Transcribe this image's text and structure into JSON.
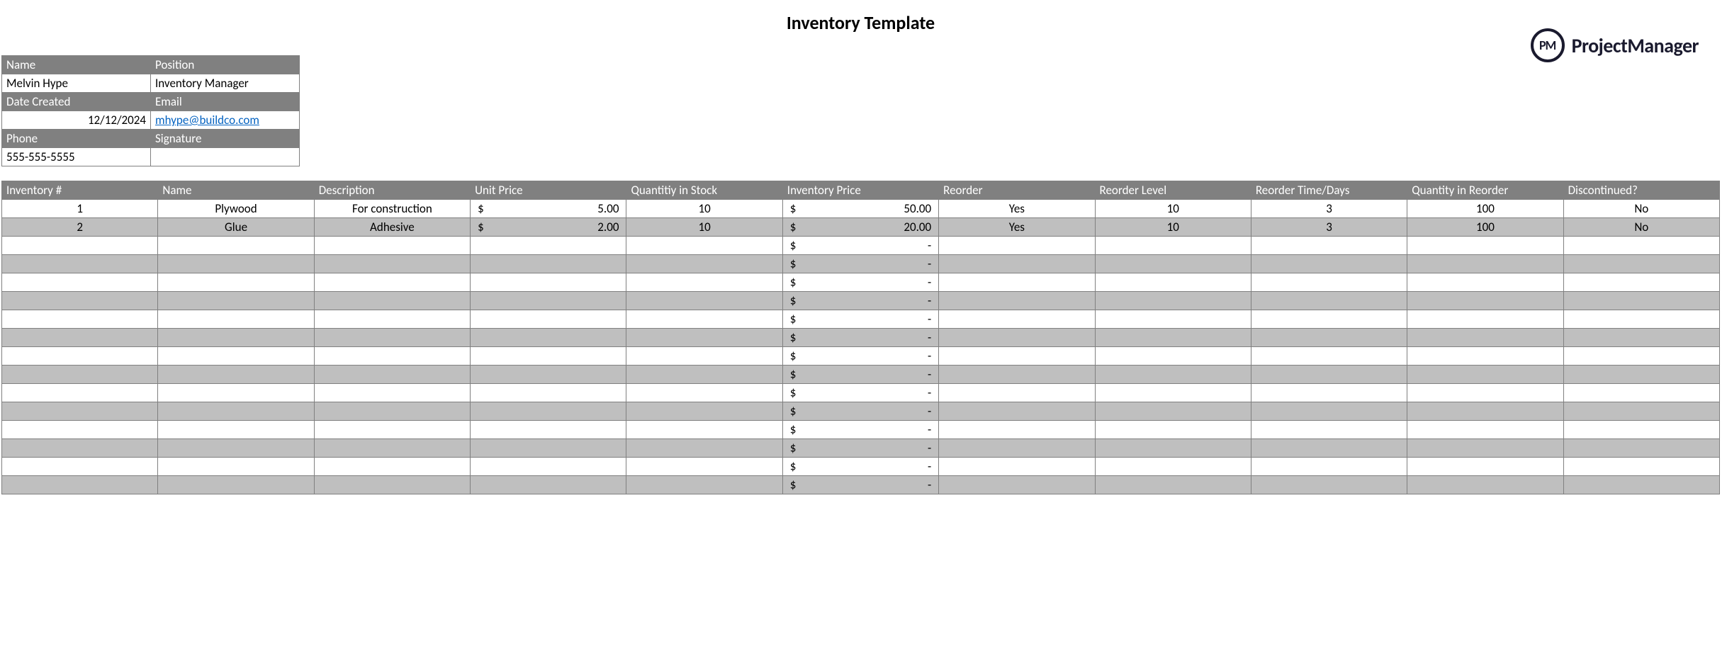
{
  "title": "Inventory Template",
  "logo": {
    "badge": "PM",
    "text": "ProjectManager"
  },
  "meta": {
    "name_label": "Name",
    "name_value": "Melvin Hype",
    "position_label": "Position",
    "position_value": "Inventory Manager",
    "date_created_label": "Date Created",
    "date_created_value": "12/12/2024",
    "email_label": "Email",
    "email_value": "mhype@buildco.com",
    "phone_label": "Phone",
    "phone_value": "555-555-5555",
    "signature_label": "Signature",
    "signature_value": ""
  },
  "columns": [
    "Inventory #",
    "Name",
    "Description",
    "Unit Price",
    "Quantitiy in Stock",
    "Inventory Price",
    "Reorder",
    "Reorder Level",
    "Reorder Time/Days",
    "Quantity in Reorder",
    "Discontinued?"
  ],
  "currency_symbol": "$",
  "rows": [
    {
      "inv": "1",
      "name": "Plywood",
      "desc": "For construction",
      "unit_price": "5.00",
      "qty": "10",
      "inv_price": "50.00",
      "reorder": "Yes",
      "reorder_level": "10",
      "reorder_days": "3",
      "qty_reorder": "100",
      "discontinued": "No"
    },
    {
      "inv": "2",
      "name": "Glue",
      "desc": "Adhesive",
      "unit_price": "2.00",
      "qty": "10",
      "inv_price": "20.00",
      "reorder": "Yes",
      "reorder_level": "10",
      "reorder_days": "3",
      "qty_reorder": "100",
      "discontinued": "No"
    },
    {
      "inv": "",
      "name": "",
      "desc": "",
      "unit_price": "",
      "qty": "",
      "inv_price": "-",
      "reorder": "",
      "reorder_level": "",
      "reorder_days": "",
      "qty_reorder": "",
      "discontinued": ""
    },
    {
      "inv": "",
      "name": "",
      "desc": "",
      "unit_price": "",
      "qty": "",
      "inv_price": "-",
      "reorder": "",
      "reorder_level": "",
      "reorder_days": "",
      "qty_reorder": "",
      "discontinued": ""
    },
    {
      "inv": "",
      "name": "",
      "desc": "",
      "unit_price": "",
      "qty": "",
      "inv_price": "-",
      "reorder": "",
      "reorder_level": "",
      "reorder_days": "",
      "qty_reorder": "",
      "discontinued": ""
    },
    {
      "inv": "",
      "name": "",
      "desc": "",
      "unit_price": "",
      "qty": "",
      "inv_price": "-",
      "reorder": "",
      "reorder_level": "",
      "reorder_days": "",
      "qty_reorder": "",
      "discontinued": ""
    },
    {
      "inv": "",
      "name": "",
      "desc": "",
      "unit_price": "",
      "qty": "",
      "inv_price": "-",
      "reorder": "",
      "reorder_level": "",
      "reorder_days": "",
      "qty_reorder": "",
      "discontinued": ""
    },
    {
      "inv": "",
      "name": "",
      "desc": "",
      "unit_price": "",
      "qty": "",
      "inv_price": "-",
      "reorder": "",
      "reorder_level": "",
      "reorder_days": "",
      "qty_reorder": "",
      "discontinued": ""
    },
    {
      "inv": "",
      "name": "",
      "desc": "",
      "unit_price": "",
      "qty": "",
      "inv_price": "-",
      "reorder": "",
      "reorder_level": "",
      "reorder_days": "",
      "qty_reorder": "",
      "discontinued": ""
    },
    {
      "inv": "",
      "name": "",
      "desc": "",
      "unit_price": "",
      "qty": "",
      "inv_price": "-",
      "reorder": "",
      "reorder_level": "",
      "reorder_days": "",
      "qty_reorder": "",
      "discontinued": ""
    },
    {
      "inv": "",
      "name": "",
      "desc": "",
      "unit_price": "",
      "qty": "",
      "inv_price": "-",
      "reorder": "",
      "reorder_level": "",
      "reorder_days": "",
      "qty_reorder": "",
      "discontinued": ""
    },
    {
      "inv": "",
      "name": "",
      "desc": "",
      "unit_price": "",
      "qty": "",
      "inv_price": "-",
      "reorder": "",
      "reorder_level": "",
      "reorder_days": "",
      "qty_reorder": "",
      "discontinued": ""
    },
    {
      "inv": "",
      "name": "",
      "desc": "",
      "unit_price": "",
      "qty": "",
      "inv_price": "-",
      "reorder": "",
      "reorder_level": "",
      "reorder_days": "",
      "qty_reorder": "",
      "discontinued": ""
    },
    {
      "inv": "",
      "name": "",
      "desc": "",
      "unit_price": "",
      "qty": "",
      "inv_price": "-",
      "reorder": "",
      "reorder_level": "",
      "reorder_days": "",
      "qty_reorder": "",
      "discontinued": ""
    },
    {
      "inv": "",
      "name": "",
      "desc": "",
      "unit_price": "",
      "qty": "",
      "inv_price": "-",
      "reorder": "",
      "reorder_level": "",
      "reorder_days": "",
      "qty_reorder": "",
      "discontinued": ""
    },
    {
      "inv": "",
      "name": "",
      "desc": "",
      "unit_price": "",
      "qty": "",
      "inv_price": "-",
      "reorder": "",
      "reorder_level": "",
      "reorder_days": "",
      "qty_reorder": "",
      "discontinued": ""
    }
  ],
  "colors": {
    "header_bg": "#808080",
    "header_fg": "#ffffff",
    "stripe_bg": "#bfbfbf",
    "border": "#808080",
    "link": "#0563c1",
    "logo": "#1a1a2e"
  }
}
